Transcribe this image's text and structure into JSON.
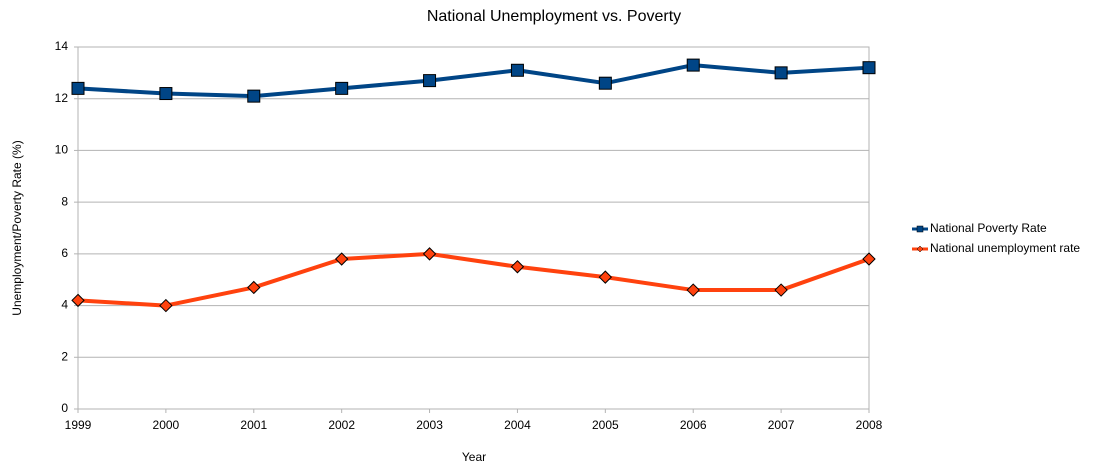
{
  "chart_data": {
    "type": "line",
    "title": "National Unemployment vs. Poverty",
    "x_label": "Year",
    "y_label": "Unemployment/Poverty Rate (%)",
    "x": [
      1999,
      2000,
      2001,
      2002,
      2003,
      2004,
      2005,
      2006,
      2007,
      2008
    ],
    "xlim": [
      1999,
      2008
    ],
    "xticks": [
      1999,
      2000,
      2001,
      2002,
      2003,
      2004,
      2005,
      2006,
      2007,
      2008
    ],
    "ylim": [
      0,
      14
    ],
    "yticks": [
      0,
      2,
      4,
      6,
      8,
      10,
      12,
      14
    ],
    "grid": true,
    "legend": "right",
    "series": [
      {
        "name": "National Poverty Rate",
        "color": "#004586",
        "marker": "square",
        "values": [
          12.4,
          12.2,
          12.1,
          12.4,
          12.7,
          13.1,
          12.6,
          13.3,
          13.0,
          13.2
        ]
      },
      {
        "name": "National unemployment rate",
        "color": "#ff420e",
        "marker": "diamond",
        "values": [
          4.2,
          4.0,
          4.7,
          5.8,
          6.0,
          5.5,
          5.1,
          4.6,
          4.6,
          5.8
        ]
      }
    ]
  }
}
